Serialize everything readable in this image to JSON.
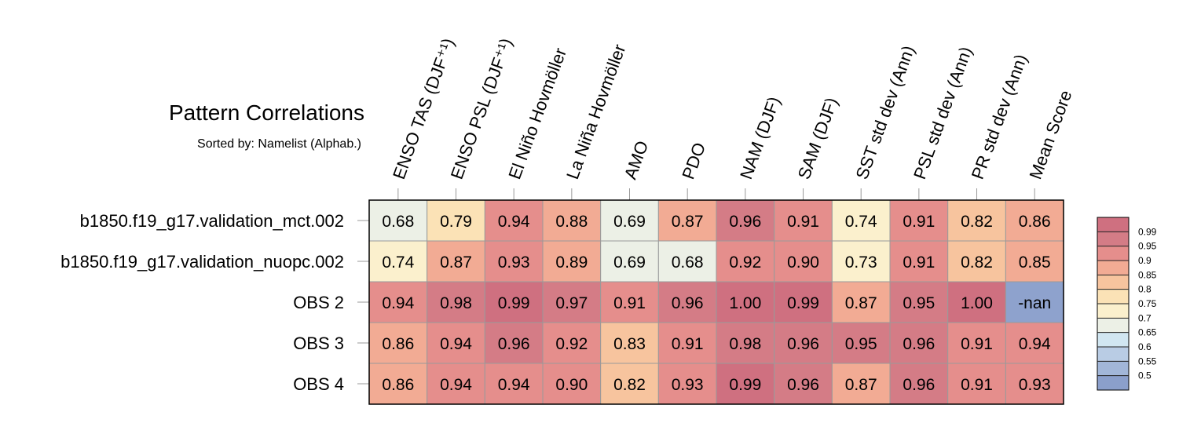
{
  "chart_data": {
    "type": "heatmap",
    "title": "Pattern Correlations",
    "subtitle": "Sorted by: Namelist (Alphab.)",
    "columns": [
      "ENSO TAS (DJF⁺¹)",
      "ENSO PSL (DJF⁺¹)",
      "El Niño Hovmöller",
      "La Niña Hovmöller",
      "AMO",
      "PDO",
      "NAM (DJF)",
      "SAM (DJF)",
      "SST std dev (Ann)",
      "PSL std dev (Ann)",
      "PR std dev (Ann)",
      "Mean Score"
    ],
    "rows": [
      "b1850.f19_g17.validation_mct.002",
      "b1850.f19_g17.validation_nuopc.002",
      "OBS 2",
      "OBS 3",
      "OBS 4"
    ],
    "values": [
      [
        0.68,
        0.79,
        0.94,
        0.88,
        0.69,
        0.87,
        0.96,
        0.91,
        0.74,
        0.91,
        0.82,
        0.86
      ],
      [
        0.74,
        0.87,
        0.93,
        0.89,
        0.69,
        0.68,
        0.92,
        0.9,
        0.73,
        0.91,
        0.82,
        0.85
      ],
      [
        0.94,
        0.98,
        0.99,
        0.97,
        0.91,
        0.96,
        1.0,
        0.99,
        0.87,
        0.95,
        1.0,
        null
      ],
      [
        0.86,
        0.94,
        0.96,
        0.92,
        0.83,
        0.91,
        0.98,
        0.96,
        0.95,
        0.96,
        0.91,
        0.94
      ],
      [
        0.86,
        0.94,
        0.94,
        0.9,
        0.82,
        0.93,
        0.99,
        0.96,
        0.87,
        0.96,
        0.91,
        0.93
      ]
    ],
    "labels": [
      [
        "0.68",
        "0.79",
        "0.94",
        "0.88",
        "0.69",
        "0.87",
        "0.96",
        "0.91",
        "0.74",
        "0.91",
        "0.82",
        "0.86"
      ],
      [
        "0.74",
        "0.87",
        "0.93",
        "0.89",
        "0.69",
        "0.68",
        "0.92",
        "0.90",
        "0.73",
        "0.91",
        "0.82",
        "0.85"
      ],
      [
        "0.94",
        "0.98",
        "0.99",
        "0.97",
        "0.91",
        "0.96",
        "1.00",
        "0.99",
        "0.87",
        "0.95",
        "1.00",
        "-nan"
      ],
      [
        "0.86",
        "0.94",
        "0.96",
        "0.92",
        "0.83",
        "0.91",
        "0.98",
        "0.96",
        "0.95",
        "0.96",
        "0.91",
        "0.94"
      ],
      [
        "0.86",
        "0.94",
        "0.94",
        "0.90",
        "0.82",
        "0.93",
        "0.99",
        "0.96",
        "0.87",
        "0.96",
        "0.91",
        "0.93"
      ]
    ],
    "levels": [
      0.5,
      0.55,
      0.6,
      0.65,
      0.7,
      0.75,
      0.8,
      0.85,
      0.9,
      0.95,
      0.99
    ],
    "level_labels": [
      "0.5",
      "0.55",
      "0.6",
      "0.65",
      "0.7",
      "0.75",
      "0.8",
      "0.85",
      "0.9",
      "0.95",
      "0.99"
    ],
    "colors": [
      "#8b9fcb",
      "#a2b6d8",
      "#b9cce4",
      "#d1e6f1",
      "#ecf0e6",
      "#fbf0cd",
      "#fbe2b6",
      "#f7c49e",
      "#f2ab94",
      "#e58e8c",
      "#d47c86",
      "#cf7080"
    ],
    "nan_color": "#8ea2cd",
    "legend": "right"
  }
}
